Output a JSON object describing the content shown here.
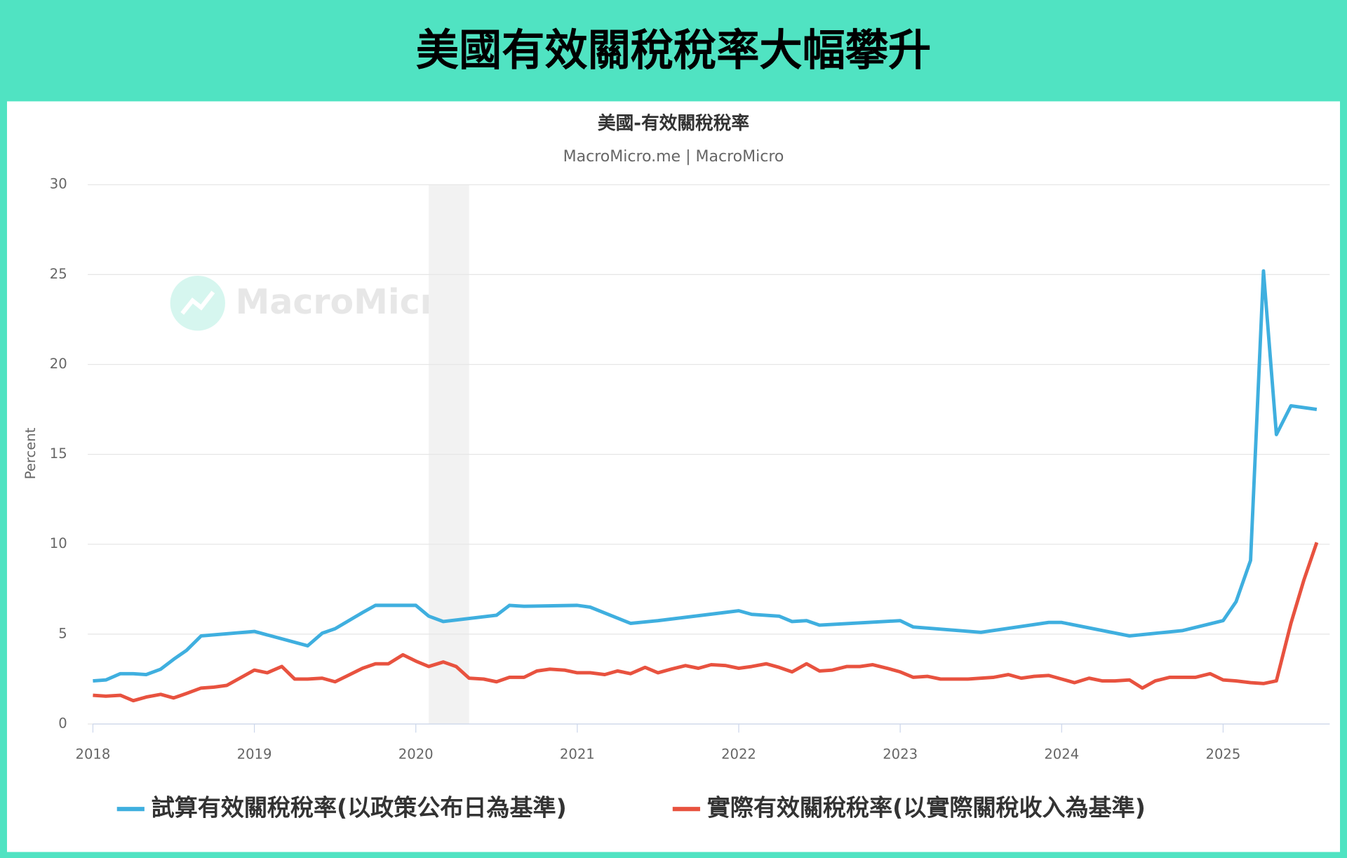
{
  "header": {
    "title": "美國有效關稅稅率大幅攀升"
  },
  "chart_data": {
    "type": "line",
    "title": "美國-有效關稅稅率",
    "subtitle": "MacroMicro.me | MacroMicro",
    "watermark": "MacroMicro",
    "y_label": "Percent",
    "xlim": [
      2018,
      2025.66
    ],
    "ylim": [
      0,
      30
    ],
    "xticks": [
      2018,
      2019,
      2020,
      2021,
      2022,
      2023,
      2024,
      2025
    ],
    "yticks": [
      0,
      5,
      10,
      15,
      20,
      25,
      30
    ],
    "grid": true,
    "shaded_region": [
      2020.08,
      2020.33
    ],
    "legend": "bottom",
    "series": [
      {
        "name": "試算有效關稅稅率(以政策公布日為基準)",
        "color": "#3fafdf",
        "x": [
          2018.0,
          2018.08,
          2018.17,
          2018.25,
          2018.33,
          2018.42,
          2018.5,
          2018.58,
          2018.67,
          2019.0,
          2019.33,
          2019.42,
          2019.5,
          2019.67,
          2019.75,
          2020.0,
          2020.08,
          2020.17,
          2020.5,
          2020.58,
          2020.67,
          2021.0,
          2021.08,
          2021.33,
          2021.5,
          2022.0,
          2022.08,
          2022.25,
          2022.33,
          2022.42,
          2022.5,
          2023.0,
          2023.08,
          2023.5,
          2023.92,
          2024.0,
          2024.42,
          2024.75,
          2025.0,
          2025.08,
          2025.17,
          2025.25,
          2025.33,
          2025.42,
          2025.58
        ],
        "values": [
          2.4,
          2.45,
          2.8,
          2.8,
          2.75,
          3.05,
          3.6,
          4.1,
          4.9,
          5.15,
          4.35,
          5.05,
          5.3,
          6.2,
          6.6,
          6.6,
          6.0,
          5.7,
          6.05,
          6.6,
          6.55,
          6.6,
          6.5,
          5.6,
          5.75,
          6.3,
          6.1,
          6.0,
          5.7,
          5.75,
          5.5,
          5.75,
          5.4,
          5.1,
          5.65,
          5.65,
          4.9,
          5.2,
          5.75,
          6.8,
          9.1,
          25.2,
          16.1,
          17.7,
          17.5
        ]
      },
      {
        "name": "實際有效關稅稅率(以實際關稅收入為基準)",
        "color": "#e8523f",
        "x": [
          2018.0,
          2018.08,
          2018.17,
          2018.25,
          2018.33,
          2018.42,
          2018.5,
          2018.58,
          2018.67,
          2018.75,
          2018.83,
          2018.92,
          2019.0,
          2019.08,
          2019.17,
          2019.25,
          2019.33,
          2019.42,
          2019.5,
          2019.58,
          2019.67,
          2019.75,
          2019.83,
          2019.92,
          2020.0,
          2020.08,
          2020.17,
          2020.25,
          2020.33,
          2020.42,
          2020.5,
          2020.58,
          2020.67,
          2020.75,
          2020.83,
          2020.92,
          2021.0,
          2021.08,
          2021.17,
          2021.25,
          2021.33,
          2021.42,
          2021.5,
          2021.58,
          2021.67,
          2021.75,
          2021.83,
          2021.92,
          2022.0,
          2022.08,
          2022.17,
          2022.25,
          2022.33,
          2022.42,
          2022.5,
          2022.58,
          2022.67,
          2022.75,
          2022.83,
          2022.92,
          2023.0,
          2023.08,
          2023.17,
          2023.25,
          2023.33,
          2023.42,
          2023.5,
          2023.58,
          2023.67,
          2023.75,
          2023.83,
          2023.92,
          2024.0,
          2024.08,
          2024.17,
          2024.25,
          2024.33,
          2024.42,
          2024.5,
          2024.58,
          2024.67,
          2024.75,
          2024.83,
          2024.92,
          2025.0,
          2025.08,
          2025.17,
          2025.25,
          2025.33,
          2025.42,
          2025.5,
          2025.58
        ],
        "values": [
          1.6,
          1.55,
          1.6,
          1.3,
          1.5,
          1.65,
          1.45,
          1.7,
          2.0,
          2.05,
          2.15,
          2.6,
          3.0,
          2.85,
          3.2,
          2.5,
          2.5,
          2.55,
          2.35,
          2.7,
          3.1,
          3.35,
          3.35,
          3.85,
          3.5,
          3.2,
          3.45,
          3.2,
          2.55,
          2.5,
          2.35,
          2.6,
          2.6,
          2.95,
          3.05,
          3.0,
          2.85,
          2.85,
          2.75,
          2.95,
          2.8,
          3.15,
          2.85,
          3.05,
          3.25,
          3.1,
          3.3,
          3.25,
          3.1,
          3.2,
          3.35,
          3.15,
          2.9,
          3.35,
          2.95,
          3.0,
          3.2,
          3.2,
          3.3,
          3.1,
          2.9,
          2.6,
          2.65,
          2.5,
          2.5,
          2.5,
          2.55,
          2.6,
          2.75,
          2.55,
          2.65,
          2.7,
          2.5,
          2.3,
          2.55,
          2.4,
          2.4,
          2.45,
          2.0,
          2.4,
          2.6,
          2.6,
          2.6,
          2.8,
          2.45,
          2.4,
          2.3,
          2.25,
          2.4,
          5.6,
          8.0,
          10.1
        ]
      }
    ]
  }
}
